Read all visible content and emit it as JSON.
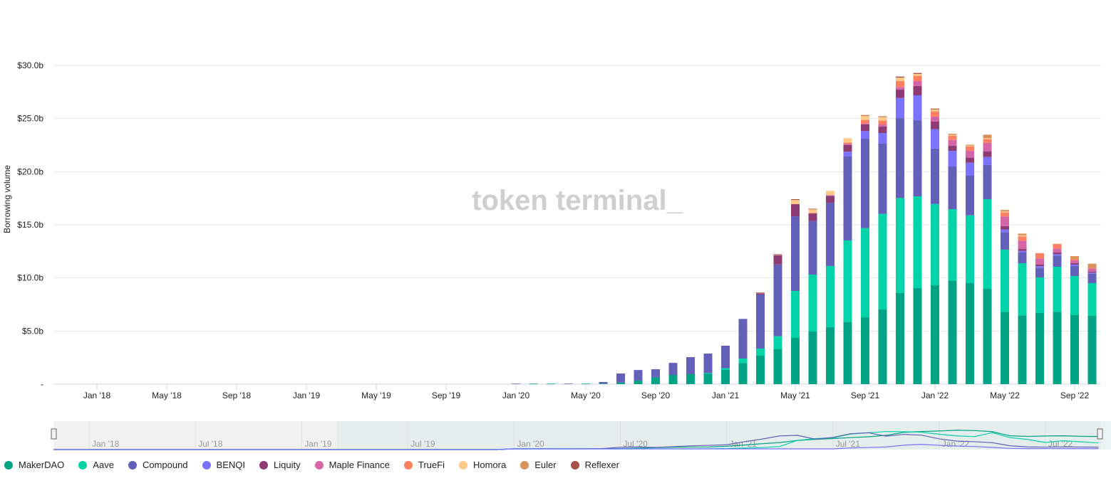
{
  "watermark": "token terminal_",
  "chart_data": {
    "type": "bar",
    "stacked": true,
    "title": "",
    "xlabel": "",
    "ylabel": "Borrowing volume",
    "ylim": [
      0,
      30
    ],
    "y_unit": "billion USD",
    "yticks": [
      "-",
      "$5.0b",
      "$10.0b",
      "$15.0b",
      "$20.0b",
      "$25.0b",
      "$30.0b"
    ],
    "grid": true,
    "x_range": [
      "Nov '17",
      "Oct '22"
    ],
    "xticks": [
      "Jan '18",
      "May '18",
      "Sep '18",
      "Jan '19",
      "May '19",
      "Sep '19",
      "Jan '20",
      "May '20",
      "Sep '20",
      "Jan '21",
      "May '21",
      "Sep '21",
      "Jan '22",
      "May '22",
      "Sep '22"
    ],
    "navigator_ticks": [
      "Jan '18",
      "Jul '18",
      "Jan '19",
      "Jul '19",
      "Jan '20",
      "Jul '20",
      "Jan '21",
      "Jul '21",
      "Jan '22",
      "Jul '22"
    ],
    "legend_position": "bottom-left",
    "categories": [
      "Jan '20",
      "Feb '20",
      "Mar '20",
      "Apr '20",
      "May '20",
      "Jun '20",
      "Jul '20",
      "Aug '20",
      "Sep '20",
      "Oct '20",
      "Nov '20",
      "Dec '20",
      "Jan '21",
      "Feb '21",
      "Mar '21",
      "Apr '21",
      "May '21",
      "Jun '21",
      "Jul '21",
      "Aug '21",
      "Sep '21",
      "Oct '21",
      "Nov '21",
      "Dec '21",
      "Jan '22",
      "Feb '22",
      "Mar '22",
      "Apr '22",
      "May '22",
      "Jun '22",
      "Jul '22",
      "Aug '22",
      "Sep '22",
      "Oct '22"
    ],
    "series": [
      {
        "name": "MakerDAO",
        "color": "#00a383",
        "values": [
          0,
          0.05,
          0.05,
          0,
          0.05,
          0.05,
          0.15,
          0.33,
          0.63,
          0.87,
          0.94,
          1.0,
          1.34,
          2.0,
          2.68,
          3.28,
          4.35,
          4.96,
          5.36,
          5.85,
          6.29,
          7.03,
          8.59,
          9.04,
          9.31,
          9.71,
          9.51,
          8.97,
          6.81,
          6.47,
          6.7,
          6.81,
          6.52,
          6.43
        ]
      },
      {
        "name": "Aave",
        "color": "#00d4a8",
        "values": [
          0,
          0,
          0,
          0,
          0,
          0,
          0,
          0,
          0,
          0,
          0,
          0.05,
          0.16,
          0.41,
          0.67,
          1.23,
          4.42,
          5.35,
          5.76,
          7.68,
          8.4,
          9.0,
          8.93,
          8.64,
          7.65,
          6.76,
          6.38,
          8.44,
          5.85,
          4.91,
          3.34,
          4.24,
          3.66,
          3.08
        ]
      },
      {
        "name": "Compound",
        "color": "#6260b8",
        "values": [
          0.05,
          0,
          0,
          0.05,
          0,
          0.15,
          0.85,
          1.0,
          0.77,
          1.13,
          1.6,
          1.83,
          2.12,
          3.73,
          5.09,
          6.76,
          7.03,
          5.05,
          5.96,
          7.9,
          8.41,
          6.63,
          7.52,
          7.16,
          5.21,
          4.02,
          3.73,
          3.22,
          1.63,
          1.01,
          0.9,
          1.05,
          0.94,
          0.89
        ]
      },
      {
        "name": "BENQI",
        "color": "#7b72ff",
        "values": [
          0,
          0,
          0,
          0,
          0,
          0,
          0,
          0,
          0,
          0,
          0,
          0,
          0,
          0,
          0,
          0,
          0,
          0,
          0,
          0.45,
          0.72,
          0.98,
          1.9,
          2.35,
          1.83,
          1.47,
          1.23,
          0.75,
          0.26,
          0.15,
          0.16,
          0.13,
          0.13,
          0.09
        ]
      },
      {
        "name": "Liquity",
        "color": "#8e3a73",
        "values": [
          0,
          0,
          0,
          0,
          0,
          0,
          0,
          0,
          0,
          0,
          0,
          0,
          0,
          0,
          0.11,
          0.87,
          1.14,
          0.71,
          0.64,
          0.64,
          0.64,
          0.62,
          0.78,
          0.87,
          0.71,
          0.47,
          0.47,
          0.54,
          0.32,
          0.18,
          0.17,
          0.16,
          0.13,
          0.11
        ]
      },
      {
        "name": "Maple Finance",
        "color": "#d466a8",
        "values": [
          0,
          0,
          0,
          0,
          0,
          0,
          0,
          0,
          0,
          0,
          0,
          0,
          0,
          0,
          0,
          0,
          0,
          0,
          0.07,
          0.11,
          0.09,
          0.18,
          0.25,
          0.47,
          0.47,
          0.56,
          0.64,
          0.78,
          0.91,
          0.78,
          0.56,
          0.38,
          0.27,
          0.29
        ]
      },
      {
        "name": "TrueFi",
        "color": "#ff7f63",
        "values": [
          0,
          0,
          0,
          0,
          0,
          0,
          0,
          0,
          0,
          0,
          0,
          0,
          0,
          0,
          0,
          0,
          0,
          0.05,
          0,
          0.1,
          0.32,
          0.38,
          0.56,
          0.49,
          0.49,
          0.38,
          0.41,
          0.36,
          0.36,
          0.4,
          0.45,
          0.36,
          0.1,
          0.05
        ]
      },
      {
        "name": "Homora",
        "color": "#ffc98a",
        "values": [
          0,
          0,
          0,
          0,
          0,
          0,
          0,
          0,
          0,
          0,
          0,
          0,
          0,
          0,
          0.05,
          0.07,
          0.4,
          0.35,
          0.4,
          0.42,
          0.4,
          0.36,
          0.33,
          0.18,
          0.16,
          0.1,
          0.09,
          0.09,
          0.11,
          0.11,
          0,
          0,
          0,
          0
        ]
      },
      {
        "name": "Euler",
        "color": "#d9925a",
        "values": [
          0,
          0,
          0,
          0,
          0,
          0,
          0,
          0,
          0,
          0,
          0,
          0,
          0,
          0,
          0,
          0,
          0,
          0,
          0,
          0,
          0,
          0,
          0,
          0,
          0.08,
          0.1,
          0.08,
          0.33,
          0.15,
          0.16,
          0.06,
          0.08,
          0.3,
          0.4
        ]
      },
      {
        "name": "Reflexer",
        "color": "#a5504a",
        "values": [
          0,
          0,
          0,
          0,
          0,
          0,
          0,
          0,
          0,
          0,
          0,
          0,
          0,
          0,
          0.02,
          0.02,
          0.07,
          0.04,
          0,
          0,
          0.06,
          0.03,
          0.09,
          0.09,
          0.03,
          0,
          0,
          0,
          0,
          0,
          0,
          0,
          0,
          0
        ]
      }
    ]
  }
}
